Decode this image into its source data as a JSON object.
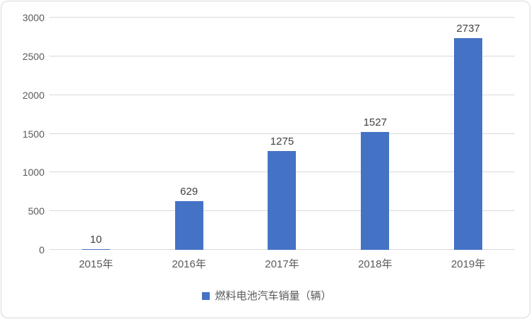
{
  "chart_data": {
    "type": "bar",
    "categories": [
      "2015年",
      "2016年",
      "2017年",
      "2018年",
      "2019年"
    ],
    "values": [
      10,
      629,
      1275,
      1527,
      2737
    ],
    "data_labels": [
      "10",
      "629",
      "1275",
      "1527",
      "2737"
    ],
    "series_name": "燃料电池汽车销量（辆）",
    "title": "",
    "xlabel": "",
    "ylabel": "",
    "ylim": [
      0,
      3000
    ],
    "y_ticks": [
      0,
      500,
      1000,
      1500,
      2000,
      2500,
      3000
    ],
    "y_tick_labels": [
      "0",
      "500",
      "1000",
      "1500",
      "2000",
      "2500",
      "3000"
    ],
    "grid": "horizontal",
    "legend_position": "bottom-center"
  },
  "legend": {
    "label": "燃料电池汽车销量（辆）"
  },
  "colors": {
    "bar": "#4472c4",
    "gridline": "#d9d9d9",
    "axis_text": "#595959",
    "data_label_text": "#404040",
    "frame_border": "#d9d9d9",
    "background": "#ffffff"
  }
}
